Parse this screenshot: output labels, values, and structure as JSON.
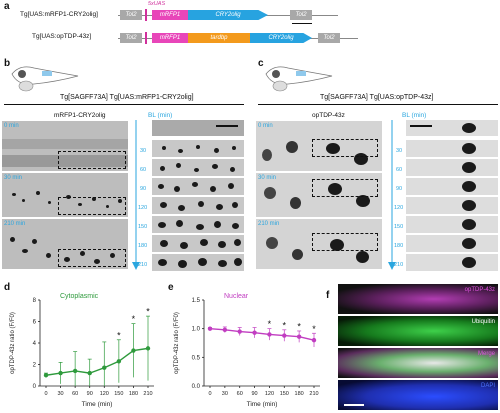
{
  "panels": {
    "a": {
      "label": "a",
      "construct1": {
        "name": "Tg[UAS:mRFP1-CRY2olig]",
        "uas": "5xUAS",
        "tol2": "Tol2",
        "mrfp1": "mRFP1",
        "cry": "CRY2olig"
      },
      "construct2": {
        "name": "Tg[UAS:opTDP-43z]",
        "tol2": "Tol2",
        "mrfp1": "mRFP1",
        "tardbp": "tardbp",
        "cry": "CRY2olig"
      }
    },
    "b": {
      "label": "b",
      "title": "Tg[SAGFF73A] Tg[UAS:mRFP1-CRY2olig]",
      "image_label": "mRFP1-CRY2olig",
      "bl_label": "BL (min)",
      "times": [
        "0 min",
        "30 min",
        "210 min"
      ],
      "bl_ticks": [
        "30",
        "60",
        "90",
        "120",
        "150",
        "180",
        "210"
      ]
    },
    "c": {
      "label": "c",
      "title": "Tg[SAGFF73A] Tg[UAS:opTDP-43z]",
      "image_label": "opTDP-43z",
      "bl_label": "BL (min)",
      "times": [
        "0 min",
        "30 min",
        "210 min"
      ],
      "bl_ticks": [
        "30",
        "60",
        "90",
        "120",
        "150",
        "180",
        "210"
      ]
    },
    "f": {
      "label": "f",
      "rows": [
        "opTDP-43z",
        "Ubiquitin",
        "Merge",
        "DAPI"
      ]
    }
  },
  "chart_data": [
    {
      "type": "line",
      "panel": "d",
      "title": "Cytoplasmic",
      "xlabel": "Time (min)",
      "ylabel": "opTDP-43z ratio (F/F0)",
      "x": [
        0,
        30,
        60,
        90,
        120,
        150,
        180,
        210
      ],
      "xticks": [
        "0",
        "30",
        "60",
        "90",
        "120",
        "150",
        "180",
        "210"
      ],
      "yticks": [
        "0",
        "2",
        "4",
        "6",
        "8"
      ],
      "ylim": [
        0,
        8
      ],
      "series": [
        {
          "values": [
            1.0,
            1.2,
            1.4,
            1.2,
            1.7,
            2.3,
            3.3,
            3.5
          ],
          "err": [
            0.2,
            1.0,
            1.8,
            1.3,
            2.4,
            2.0,
            2.5,
            3.0
          ],
          "sig": [
            false,
            false,
            false,
            false,
            false,
            true,
            true,
            true
          ],
          "color": "#2e9a3c"
        }
      ],
      "sig_symbol": "*"
    },
    {
      "type": "line",
      "panel": "e",
      "title": "Nuclear",
      "xlabel": "Time (min)",
      "ylabel": "opTDP-43z ratio (F/F0)",
      "x": [
        0,
        30,
        60,
        90,
        120,
        150,
        180,
        210
      ],
      "xticks": [
        "0",
        "30",
        "60",
        "90",
        "120",
        "150",
        "180",
        "210"
      ],
      "yticks": [
        "0.0",
        "0.5",
        "1.0",
        "1.5"
      ],
      "ylim": [
        0,
        1.5
      ],
      "series": [
        {
          "values": [
            1.0,
            0.98,
            0.95,
            0.93,
            0.9,
            0.88,
            0.86,
            0.8
          ],
          "err": [
            0.02,
            0.05,
            0.07,
            0.09,
            0.1,
            0.1,
            0.1,
            0.12
          ],
          "sig": [
            false,
            false,
            false,
            false,
            true,
            true,
            true,
            true
          ],
          "color": "#c13dc1"
        }
      ],
      "sig_symbol": "*"
    }
  ]
}
